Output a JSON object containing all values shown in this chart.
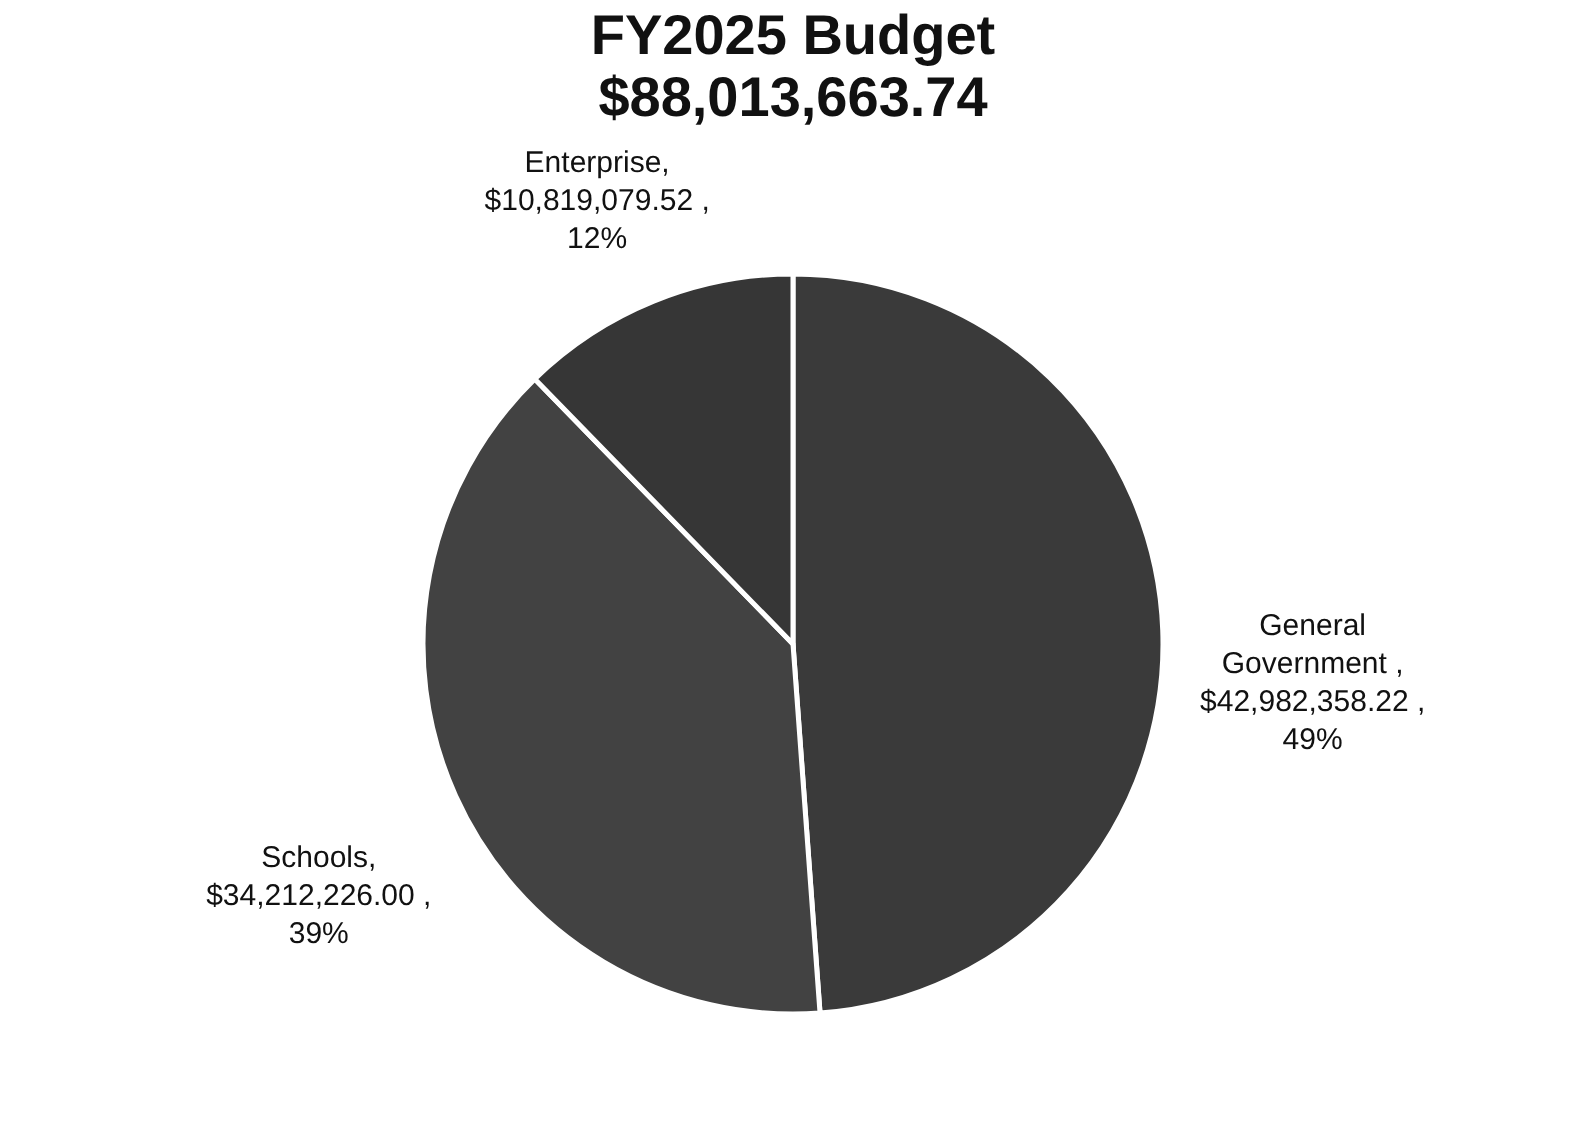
{
  "chart_data": {
    "type": "pie",
    "title": "FY2025 Budget",
    "subtitle": "$88,013,663.74",
    "categories": [
      "General Government",
      "Schools",
      "Enterprise"
    ],
    "values": [
      42982358.22,
      34212226.0,
      10819079.52
    ],
    "colors": [
      "#3a3a3a",
      "#424242",
      "#363636"
    ],
    "value_labels": [
      " ,\n$42,982,358.22 ,\n49%",
      ",\n$34,212,226.00 ,\n39%",
      ",\n$10,819,079.52 ,\n12%"
    ],
    "legend": false
  }
}
